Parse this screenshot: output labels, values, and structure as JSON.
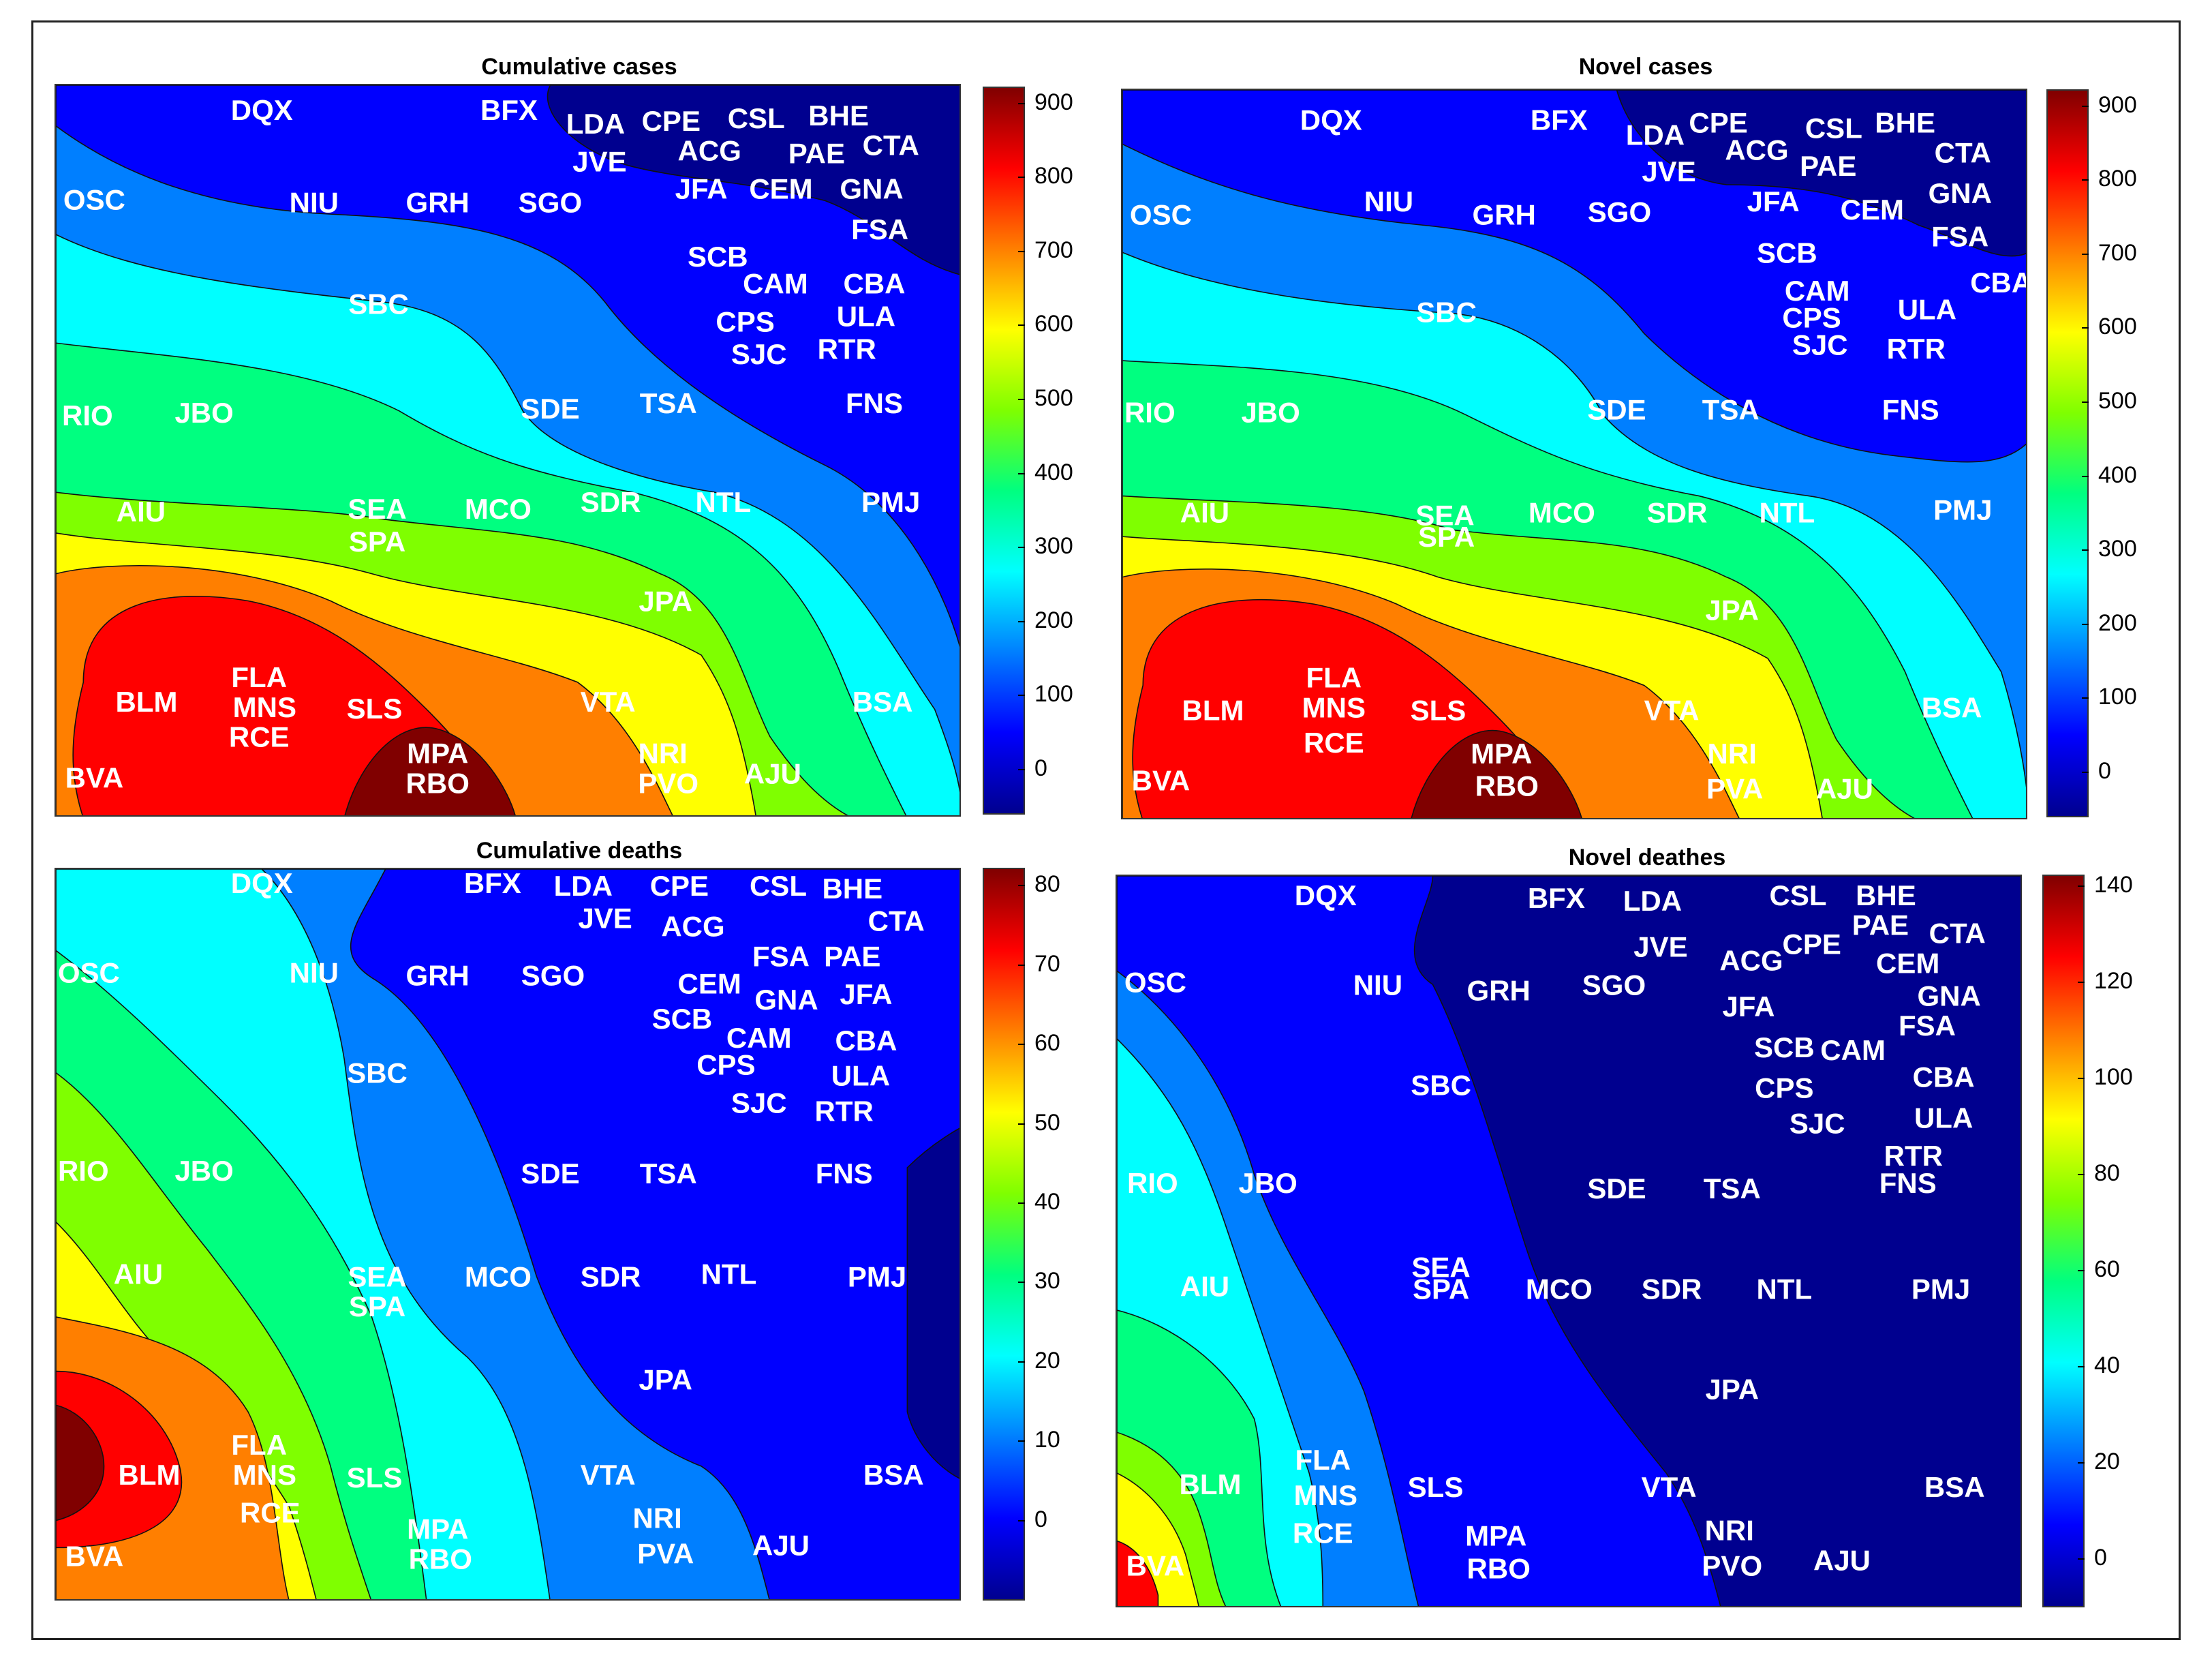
{
  "colors": {
    "jet": [
      "#00008F",
      "#0000FF",
      "#007FFF",
      "#00FFFF",
      "#00FF80",
      "#7FFF00",
      "#FFFF00",
      "#FF7F00",
      "#FF0000",
      "#800000"
    ]
  },
  "chart_data": [
    {
      "type": "heatmap",
      "title": "Cumulative cases",
      "colorbar_ticks": [
        0,
        100,
        200,
        300,
        400,
        500,
        600,
        700,
        800,
        900
      ],
      "colorbar_range": [
        -60,
        920
      ],
      "labels": [
        "DQX",
        "BFX",
        "LDA",
        "CPE",
        "CSL",
        "BHE",
        "JVE",
        "ACG",
        "PAE",
        "CTA",
        "OSC",
        "NIU",
        "GRH",
        "SGO",
        "JFA",
        "CEM",
        "GNA",
        "FSA",
        "SCB",
        "CAM",
        "CBA",
        "SBC",
        "CPS",
        "ULA",
        "SJC",
        "RTR",
        "RIO",
        "JBO",
        "SDE",
        "TSA",
        "FNS",
        "AIU",
        "SEA",
        "MCO",
        "SDR",
        "NTL",
        "PMJ",
        "SPA",
        "JPA",
        "BLM",
        "FLA",
        "MNS",
        "RCE",
        "SLS",
        "VTA",
        "BSA",
        "MPA",
        "RBO",
        "NRI",
        "PVO",
        "AJU",
        "BVA"
      ]
    },
    {
      "type": "heatmap",
      "title": "Novel cases",
      "colorbar_ticks": [
        0,
        100,
        200,
        300,
        400,
        500,
        600,
        700,
        800,
        900
      ],
      "colorbar_range": [
        -60,
        920
      ],
      "labels": [
        "DQX",
        "BFX",
        "LDA",
        "CPE",
        "CSL",
        "BHE",
        "JVE",
        "ACG",
        "PAE",
        "CTA",
        "OSC",
        "NIU",
        "GRH",
        "SGO",
        "JFA",
        "CEM",
        "GNA",
        "FSA",
        "SCB",
        "CAM",
        "CBA",
        "SBC",
        "CPS",
        "ULA",
        "SJC",
        "RTR",
        "RIO",
        "JBO",
        "SDE",
        "TSA",
        "FNS",
        "AIU",
        "SEA",
        "MCO",
        "SDR",
        "NTL",
        "PMJ",
        "SPA",
        "JPA",
        "BLM",
        "FLA",
        "MNS",
        "RCE",
        "SLS",
        "VTA",
        "BSA",
        "MPA",
        "RBO",
        "NRI",
        "PVA",
        "AJU",
        "BVA"
      ]
    },
    {
      "type": "heatmap",
      "title": "Cumulative deaths",
      "colorbar_ticks": [
        0,
        10,
        20,
        30,
        40,
        50,
        60,
        70,
        80
      ],
      "colorbar_range": [
        -10,
        82
      ],
      "labels": [
        "DQX",
        "BFX",
        "LDA",
        "CPE",
        "CSL",
        "BHE",
        "JVE",
        "ACG",
        "CTA",
        "OSC",
        "NIU",
        "GRH",
        "SGO",
        "CEM",
        "FSA",
        "PAE",
        "GNA",
        "JFA",
        "SCB",
        "CAM",
        "CBA",
        "SBC",
        "CPS",
        "ULA",
        "SJC",
        "RTR",
        "RIO",
        "JBO",
        "SDE",
        "TSA",
        "FNS",
        "AIU",
        "SEA",
        "MCO",
        "SDR",
        "NTL",
        "PMJ",
        "SPA",
        "JPA",
        "FLA",
        "BLM",
        "MNS",
        "SLS",
        "VTA",
        "BSA",
        "RCE",
        "MPA",
        "NRI",
        "RBO",
        "PVA",
        "AJU",
        "BVA"
      ]
    },
    {
      "type": "heatmap",
      "title": "Novel deathes",
      "colorbar_ticks": [
        0,
        20,
        40,
        60,
        80,
        100,
        120,
        140
      ],
      "colorbar_range": [
        -10,
        142
      ],
      "labels": [
        "DQX",
        "BFX",
        "LDA",
        "CSL",
        "BHE",
        "CPE",
        "PAE",
        "CTA",
        "JVE",
        "ACG",
        "CEM",
        "OSC",
        "NIU",
        "GRH",
        "SGO",
        "GNA",
        "JFA",
        "FSA",
        "SCB",
        "CAM",
        "SBC",
        "CPS",
        "CBA",
        "SJC",
        "ULA",
        "RTR",
        "RIO",
        "JBO",
        "SDE",
        "TSA",
        "FNS",
        "SEA",
        "AIU",
        "SPA",
        "MCO",
        "SDR",
        "NTL",
        "PMJ",
        "JPA",
        "FLA",
        "BLM",
        "MNS",
        "SLS",
        "VTA",
        "BSA",
        "RCE",
        "MPA",
        "NRI",
        "RBO",
        "PVO",
        "AJU",
        "BVA"
      ]
    }
  ]
}
